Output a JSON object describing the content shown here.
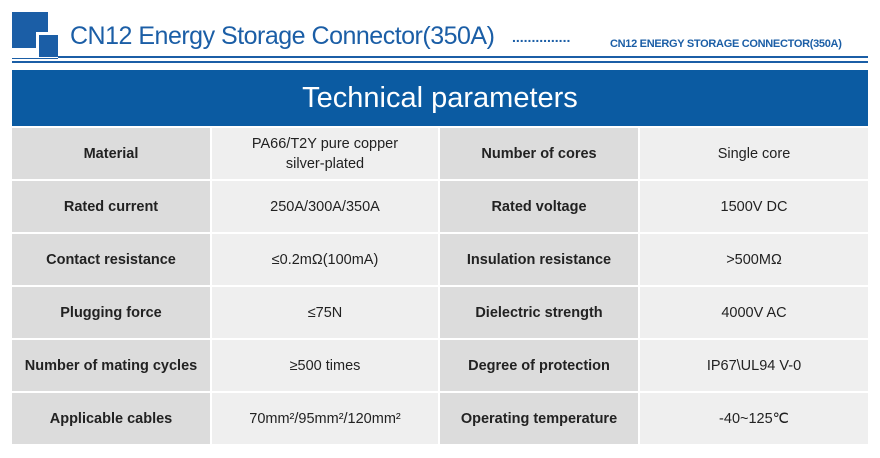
{
  "header": {
    "title": "CN12 Energy Storage Connector(350A)",
    "dots": "...............",
    "subtitle": "CN12 ENERGY STORAGE CONNECTOR(350A)",
    "brand_color": "#1b5ea6"
  },
  "banner": {
    "title": "Technical parameters"
  },
  "rows": [
    {
      "k1": "Material",
      "v1": "PA66/T2Y pure copper silver-plated",
      "k2": "Number of cores",
      "v2": "Single core"
    },
    {
      "k1": "Rated current",
      "v1": "250A/300A/350A",
      "k2": "Rated voltage",
      "v2": "1500V  DC"
    },
    {
      "k1": "Contact resistance",
      "v1": "≤0.2mΩ(100mA)",
      "k2": "Insulation resistance",
      "v2": ">500MΩ"
    },
    {
      "k1": "Plugging force",
      "v1": "≤75N",
      "k2": "Dielectric strength",
      "v2": "4000V  AC"
    },
    {
      "k1": "Number of mating cycles",
      "v1": "≥500 times",
      "k2": "Degree of protection",
      "v2": "IP67\\UL94 V-0"
    },
    {
      "k1": "Applicable cables",
      "v1": "70mm²/95mm²/120mm²",
      "k2": "Operating temperature",
      "v2": "-40~125℃"
    }
  ]
}
